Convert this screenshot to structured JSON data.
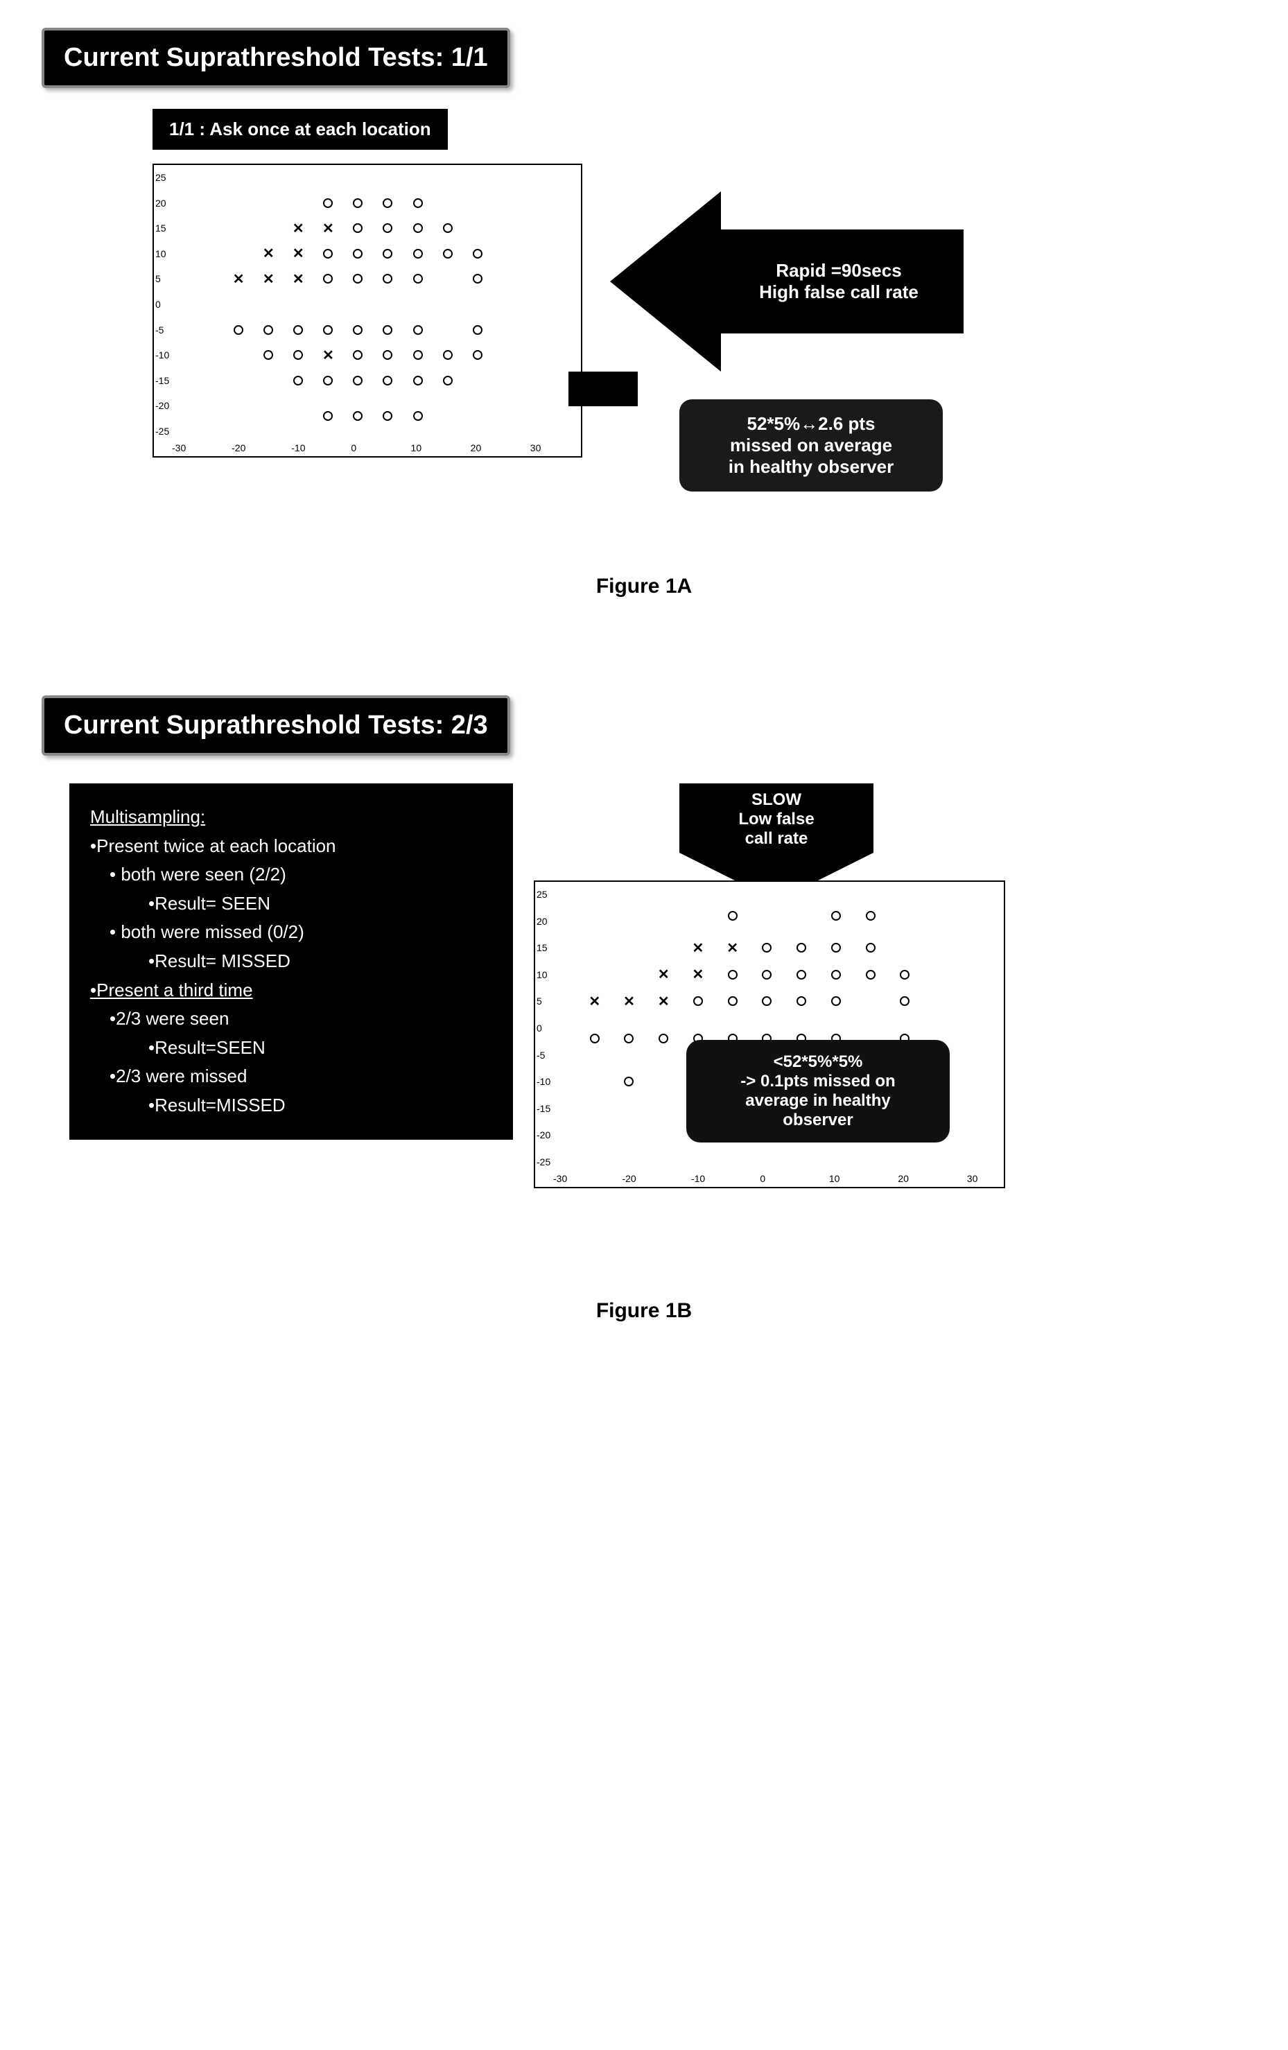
{
  "figureA": {
    "title": "Current Suprathreshold Tests: 1/1",
    "title_fontsize": 38,
    "subtitle": "1/1 : Ask once at each location",
    "subtitle_fontsize": 26,
    "arrow_line1": "Rapid =90secs",
    "arrow_line2": "High false call rate",
    "arrow_fontsize": 26,
    "callout_line1": "52*5%↔2.6 pts",
    "callout_line2": "missed on average",
    "callout_line3": "in healthy observer",
    "callout_fontsize": 26,
    "caption": "Figure 1A",
    "caption_fontsize": 30,
    "chart": {
      "xlim": [
        -30,
        30
      ],
      "ylim": [
        -25,
        25
      ],
      "xticks": [
        -30,
        -20,
        -10,
        0,
        10,
        20,
        30
      ],
      "yticks": [
        -25,
        -20,
        -15,
        -10,
        -5,
        0,
        5,
        10,
        15,
        20,
        25
      ],
      "bg": "#ffffff",
      "tick_fontsize": 14,
      "x_marker": "✕",
      "o_marker": "○",
      "points_x": [
        {
          "x": -10,
          "y": 15
        },
        {
          "x": -5,
          "y": 15
        },
        {
          "x": -15,
          "y": 10
        },
        {
          "x": -10,
          "y": 10
        },
        {
          "x": -20,
          "y": 5
        },
        {
          "x": -15,
          "y": 5
        },
        {
          "x": -10,
          "y": 5
        },
        {
          "x": -5,
          "y": -10
        }
      ],
      "points_o": [
        {
          "x": -5,
          "y": 20
        },
        {
          "x": 0,
          "y": 20
        },
        {
          "x": 5,
          "y": 20
        },
        {
          "x": 10,
          "y": 20
        },
        {
          "x": 0,
          "y": 15
        },
        {
          "x": 5,
          "y": 15
        },
        {
          "x": 10,
          "y": 15
        },
        {
          "x": 15,
          "y": 15
        },
        {
          "x": -5,
          "y": 10
        },
        {
          "x": 0,
          "y": 10
        },
        {
          "x": 5,
          "y": 10
        },
        {
          "x": 10,
          "y": 10
        },
        {
          "x": 15,
          "y": 10
        },
        {
          "x": 20,
          "y": 10
        },
        {
          "x": -5,
          "y": 5
        },
        {
          "x": 0,
          "y": 5
        },
        {
          "x": 5,
          "y": 5
        },
        {
          "x": 10,
          "y": 5
        },
        {
          "x": 20,
          "y": 5
        },
        {
          "x": -20,
          "y": -5
        },
        {
          "x": -15,
          "y": -5
        },
        {
          "x": -10,
          "y": -5
        },
        {
          "x": -5,
          "y": -5
        },
        {
          "x": 0,
          "y": -5
        },
        {
          "x": 5,
          "y": -5
        },
        {
          "x": 10,
          "y": -5
        },
        {
          "x": 20,
          "y": -5
        },
        {
          "x": -15,
          "y": -10
        },
        {
          "x": -10,
          "y": -10
        },
        {
          "x": 0,
          "y": -10
        },
        {
          "x": 5,
          "y": -10
        },
        {
          "x": 10,
          "y": -10
        },
        {
          "x": 15,
          "y": -10
        },
        {
          "x": 20,
          "y": -10
        },
        {
          "x": -10,
          "y": -15
        },
        {
          "x": -5,
          "y": -15
        },
        {
          "x": 0,
          "y": -15
        },
        {
          "x": 5,
          "y": -15
        },
        {
          "x": 10,
          "y": -15
        },
        {
          "x": 15,
          "y": -15
        },
        {
          "x": -5,
          "y": -22
        },
        {
          "x": 0,
          "y": -22
        },
        {
          "x": 5,
          "y": -22
        },
        {
          "x": 10,
          "y": -22
        }
      ]
    }
  },
  "figureB": {
    "title": "Current Suprathreshold Tests: 2/3",
    "title_fontsize": 38,
    "multisampling_title": "Multisampling:",
    "ms_line1": "•Present twice at each location",
    "ms_line2": "• both were seen (2/2)",
    "ms_line3": "•Result= SEEN",
    "ms_line4": "• both were missed (0/2)",
    "ms_line5": "•Result= MISSED",
    "ms_line6": "•Present a third time",
    "ms_line7": "•2/3 were seen",
    "ms_line8": "•Result=SEEN",
    "ms_line9": "•2/3 were missed",
    "ms_line10": "•Result=MISSED",
    "ms_fontsize": 26,
    "down_arrow_line1": "SLOW",
    "down_arrow_line2": "Low false",
    "down_arrow_line3": "call rate",
    "down_arrow_fontsize": 24,
    "callout_line1": "<52*5%*5%",
    "callout_line2": "-> 0.1pts missed on",
    "callout_line3": "average in healthy",
    "callout_line4": "observer",
    "callout_fontsize": 24,
    "caption": "Figure 1B",
    "caption_fontsize": 30,
    "chart": {
      "xlim": [
        -30,
        30
      ],
      "ylim": [
        -25,
        25
      ],
      "xticks": [
        -30,
        -20,
        -10,
        0,
        10,
        20,
        30
      ],
      "yticks": [
        -25,
        -20,
        -15,
        -10,
        -5,
        0,
        5,
        10,
        15,
        20,
        25
      ],
      "bg": "#ffffff",
      "tick_fontsize": 14,
      "points_x": [
        {
          "x": -10,
          "y": 15
        },
        {
          "x": -5,
          "y": 15
        },
        {
          "x": -15,
          "y": 10
        },
        {
          "x": -10,
          "y": 10
        },
        {
          "x": -25,
          "y": 5
        },
        {
          "x": -20,
          "y": 5
        },
        {
          "x": -15,
          "y": 5
        }
      ],
      "points_o": [
        {
          "x": -5,
          "y": 21
        },
        {
          "x": 10,
          "y": 21
        },
        {
          "x": 15,
          "y": 21
        },
        {
          "x": 0,
          "y": 15
        },
        {
          "x": 5,
          "y": 15
        },
        {
          "x": 10,
          "y": 15
        },
        {
          "x": 15,
          "y": 15
        },
        {
          "x": -5,
          "y": 10
        },
        {
          "x": 0,
          "y": 10
        },
        {
          "x": 5,
          "y": 10
        },
        {
          "x": 10,
          "y": 10
        },
        {
          "x": 15,
          "y": 10
        },
        {
          "x": 20,
          "y": 10
        },
        {
          "x": -10,
          "y": 5
        },
        {
          "x": -5,
          "y": 5
        },
        {
          "x": 0,
          "y": 5
        },
        {
          "x": 5,
          "y": 5
        },
        {
          "x": 10,
          "y": 5
        },
        {
          "x": 20,
          "y": 5
        },
        {
          "x": -25,
          "y": -2
        },
        {
          "x": -20,
          "y": -2
        },
        {
          "x": -15,
          "y": -2
        },
        {
          "x": -10,
          "y": -2
        },
        {
          "x": -5,
          "y": -2
        },
        {
          "x": 0,
          "y": -2
        },
        {
          "x": 5,
          "y": -2
        },
        {
          "x": 10,
          "y": -2
        },
        {
          "x": 20,
          "y": -2
        },
        {
          "x": -20,
          "y": -10
        }
      ]
    }
  },
  "colors": {
    "banner_bg": "#000000",
    "banner_text": "#ffffff",
    "callout_bg": "#1a1a1a",
    "page_bg": "#ffffff",
    "chart_border": "#000000"
  }
}
